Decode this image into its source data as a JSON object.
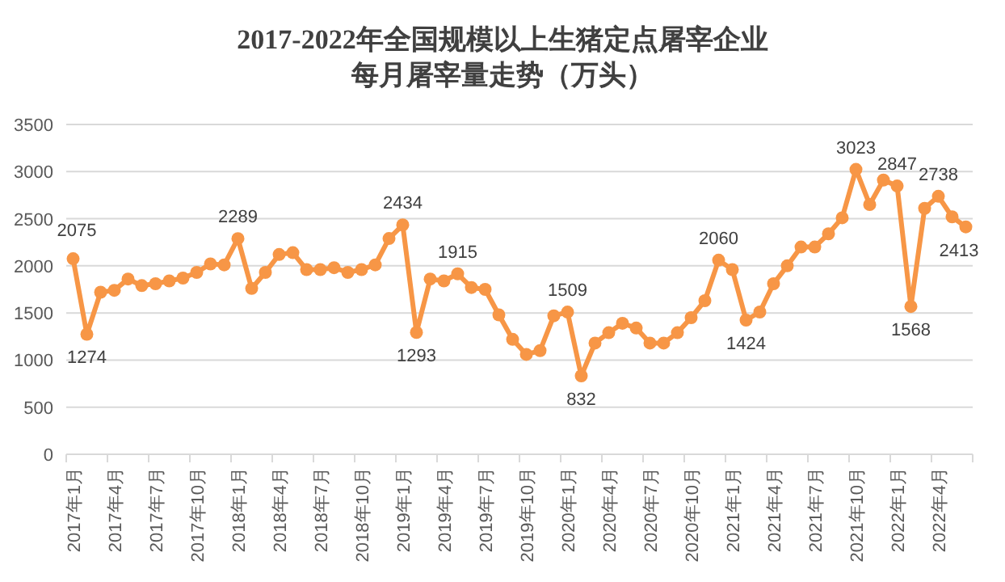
{
  "chart_data": {
    "type": "line",
    "title": "2017-2022年全国规模以上生猪定点屠宰企业每月屠宰量走势（万头）",
    "categories": [
      "2017年1月",
      null,
      null,
      "2017年4月",
      null,
      null,
      "2017年7月",
      null,
      null,
      "2017年10月",
      null,
      null,
      "2018年1月",
      null,
      null,
      "2018年4月",
      null,
      null,
      "2018年7月",
      null,
      null,
      "2018年10月",
      null,
      null,
      "2019年1月",
      null,
      null,
      "2019年4月",
      null,
      null,
      "2019年7月",
      null,
      null,
      "2019年10月",
      null,
      null,
      "2020年1月",
      null,
      null,
      "2020年4月",
      null,
      null,
      "2020年7月",
      null,
      null,
      "2020年10月",
      null,
      null,
      "2021年1月",
      null,
      null,
      "2021年4月",
      null,
      null,
      "2021年7月",
      null,
      null,
      "2021年10月",
      null,
      null,
      "2022年1月",
      null,
      null,
      "2022年4月",
      null,
      null
    ],
    "values": [
      2075,
      1274,
      1720,
      1740,
      1860,
      1790,
      1810,
      1840,
      1870,
      1930,
      2020,
      2010,
      2289,
      1760,
      1930,
      2120,
      2140,
      1960,
      1960,
      1980,
      1930,
      1960,
      2010,
      2290,
      2434,
      1293,
      1860,
      1840,
      1915,
      1770,
      1750,
      1480,
      1220,
      1060,
      1100,
      1470,
      1509,
      832,
      1180,
      1290,
      1390,
      1340,
      1180,
      1180,
      1290,
      1450,
      1630,
      2060,
      1960,
      1424,
      1510,
      1810,
      2000,
      2200,
      2200,
      2340,
      2510,
      3023,
      2650,
      2910,
      2847,
      1568,
      2610,
      2738,
      2520,
      2413
    ],
    "value_labels": [
      "2075",
      "1274",
      null,
      null,
      null,
      null,
      null,
      null,
      null,
      null,
      null,
      null,
      "2289",
      null,
      null,
      null,
      null,
      null,
      null,
      null,
      null,
      null,
      null,
      null,
      "2434",
      "1293",
      null,
      null,
      "1915",
      null,
      null,
      null,
      null,
      null,
      null,
      null,
      "1509",
      "832",
      null,
      null,
      null,
      null,
      null,
      null,
      null,
      null,
      null,
      "2060",
      null,
      "1424",
      null,
      null,
      null,
      null,
      null,
      null,
      null,
      "3023",
      null,
      null,
      "2847",
      "1568",
      null,
      "2738",
      null,
      "2413"
    ],
    "color": "#f79646",
    "ylim": [
      0,
      3500
    ],
    "yticks": [
      0,
      500,
      1000,
      1500,
      2000,
      2500,
      3000,
      3500
    ],
    "grid": "y",
    "marker": "circle",
    "line_style": "solid"
  }
}
